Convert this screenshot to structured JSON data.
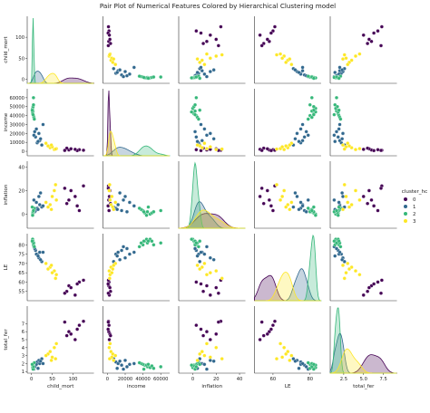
{
  "chart_data": {
    "type": "scatter",
    "title": "Pair Plot of Numerical Features Colored by Hierarchical Clustering model",
    "variables": [
      "child_mort",
      "income",
      "inflation",
      "LE",
      "total_fer"
    ],
    "legend": {
      "title": "cluster_hc",
      "position": "right",
      "entries": [
        "0",
        "1",
        "2",
        "3"
      ],
      "colors": [
        "#440154",
        "#31688e",
        "#35b779",
        "#fde725"
      ]
    },
    "axes": {
      "child_mort": {
        "lim": [
          -10,
          150
        ],
        "ticks": [
          0,
          50,
          100
        ]
      },
      "income": {
        "lim": [
          -5000,
          70000
        ],
        "ticks": [
          0,
          10000,
          20000,
          30000,
          40000,
          50000,
          60000
        ]
      },
      "inflation": {
        "lim": [
          -12,
          45
        ],
        "ticks": [
          0,
          20,
          40
        ]
      },
      "LE": {
        "lim": [
          50,
          86
        ],
        "ticks": [
          55,
          60,
          65,
          70,
          75,
          80
        ]
      },
      "total_fer": {
        "lim": [
          0.8,
          9.2
        ],
        "ticks": [
          1,
          2,
          3,
          4,
          5,
          6,
          7
        ]
      }
    },
    "axis_tick_labels": {
      "child_mort": [
        "0",
        "50",
        "100"
      ],
      "income": [
        "0",
        "20000",
        "40000",
        "60000"
      ],
      "inflation": [
        "0",
        "20",
        "40"
      ],
      "LE": [
        "60",
        "80"
      ],
      "total_fer": [
        "2.5",
        "5.0",
        "7.5"
      ]
    },
    "diagonal_type": "kde",
    "points": [
      {
        "cluster": 0,
        "child_mort": 90,
        "income": 1500,
        "inflation": 12,
        "LE": 58,
        "total_fer": 6.0
      },
      {
        "cluster": 0,
        "child_mort": 115,
        "income": 1800,
        "inflation": 3,
        "LE": 60,
        "total_fer": 6.8
      },
      {
        "cluster": 0,
        "child_mort": 125,
        "income": 1200,
        "inflation": 24,
        "LE": 61,
        "total_fer": 7.3
      },
      {
        "cluster": 0,
        "child_mort": 95,
        "income": 2800,
        "inflation": 20,
        "LE": 57,
        "total_fer": 5.7
      },
      {
        "cluster": 0,
        "child_mort": 110,
        "income": 800,
        "inflation": 7,
        "LE": 59,
        "total_fer": 6.3
      },
      {
        "cluster": 0,
        "child_mort": 105,
        "income": 2200,
        "inflation": 15,
        "LE": 53,
        "total_fer": 5.0
      },
      {
        "cluster": 0,
        "child_mort": 85,
        "income": 3500,
        "inflation": 9,
        "LE": 55,
        "total_fer": 5.5
      },
      {
        "cluster": 0,
        "child_mort": 80,
        "income": 1000,
        "inflation": 22,
        "LE": 54,
        "total_fer": 7.2
      },
      {
        "cluster": 1,
        "child_mort": 14,
        "income": 9500,
        "inflation": 5,
        "LE": 75,
        "total_fer": 2.2
      },
      {
        "cluster": 1,
        "child_mort": 20,
        "income": 12000,
        "inflation": 8,
        "LE": 76,
        "total_fer": 2.0
      },
      {
        "cluster": 1,
        "child_mort": 10,
        "income": 16000,
        "inflation": 3,
        "LE": 77,
        "total_fer": 1.8
      },
      {
        "cluster": 1,
        "child_mort": 18,
        "income": 20000,
        "inflation": 15,
        "LE": 73,
        "total_fer": 2.4
      },
      {
        "cluster": 1,
        "child_mort": 25,
        "income": 7000,
        "inflation": 6,
        "LE": 71,
        "total_fer": 2.6
      },
      {
        "cluster": 1,
        "child_mort": 8,
        "income": 22000,
        "inflation": 2,
        "LE": 78,
        "total_fer": 1.6
      },
      {
        "cluster": 1,
        "child_mort": 12,
        "income": 25000,
        "inflation": 10,
        "LE": 75,
        "total_fer": 1.9
      },
      {
        "cluster": 1,
        "child_mort": 22,
        "income": 14000,
        "inflation": 18,
        "LE": 72,
        "total_fer": 2.3
      },
      {
        "cluster": 1,
        "child_mort": 16,
        "income": 11000,
        "inflation": 4,
        "LE": 74,
        "total_fer": 1.4
      },
      {
        "cluster": 1,
        "child_mort": 6,
        "income": 18000,
        "inflation": 12,
        "LE": 79,
        "total_fer": 1.3
      },
      {
        "cluster": 1,
        "child_mort": 28,
        "income": 30000,
        "inflation": 7,
        "LE": 76,
        "total_fer": 2.0
      },
      {
        "cluster": 2,
        "child_mort": 3,
        "income": 42000,
        "inflation": 1,
        "LE": 82,
        "total_fer": 1.8
      },
      {
        "cluster": 2,
        "child_mort": 4,
        "income": 45000,
        "inflation": 2,
        "LE": 81,
        "total_fer": 1.6
      },
      {
        "cluster": 2,
        "child_mort": 5,
        "income": 40000,
        "inflation": 3,
        "LE": 80,
        "total_fer": 1.9
      },
      {
        "cluster": 2,
        "child_mort": 3,
        "income": 48000,
        "inflation": 0,
        "LE": 83,
        "total_fer": 1.5
      },
      {
        "cluster": 2,
        "child_mort": 6,
        "income": 38000,
        "inflation": 4,
        "LE": 81,
        "total_fer": 2.0
      },
      {
        "cluster": 2,
        "child_mort": 4,
        "income": 50000,
        "inflation": 1,
        "LE": 82,
        "total_fer": 1.7
      },
      {
        "cluster": 2,
        "child_mort": 5,
        "income": 52000,
        "inflation": 2,
        "LE": 80,
        "total_fer": 1.4
      },
      {
        "cluster": 2,
        "child_mort": 3,
        "income": 44000,
        "inflation": -1,
        "LE": 83,
        "total_fer": 1.8
      },
      {
        "cluster": 2,
        "child_mort": 7,
        "income": 36000,
        "inflation": 5,
        "LE": 79,
        "total_fer": 2.1
      },
      {
        "cluster": 2,
        "child_mort": 4,
        "income": 41000,
        "inflation": 2,
        "LE": 82,
        "total_fer": 1.3
      },
      {
        "cluster": 2,
        "child_mort": 5,
        "income": 60000,
        "inflation": 3,
        "LE": 81,
        "total_fer": 1.6
      },
      {
        "cluster": 2,
        "child_mort": 2,
        "income": 46000,
        "inflation": 6,
        "LE": 82,
        "total_fer": 1.9
      },
      {
        "cluster": 3,
        "child_mort": 55,
        "income": 2000,
        "inflation": 20,
        "LE": 66,
        "total_fer": 4.0
      },
      {
        "cluster": 3,
        "child_mort": 45,
        "income": 4000,
        "inflation": 8,
        "LE": 68,
        "total_fer": 3.5
      },
      {
        "cluster": 3,
        "child_mort": 60,
        "income": 3000,
        "inflation": 12,
        "LE": 64,
        "total_fer": 4.5
      },
      {
        "cluster": 3,
        "child_mort": 40,
        "income": 6000,
        "inflation": 6,
        "LE": 67,
        "total_fer": 3.2
      },
      {
        "cluster": 3,
        "child_mort": 50,
        "income": 5000,
        "inflation": 15,
        "LE": 65,
        "total_fer": 2.8
      },
      {
        "cluster": 3,
        "child_mort": 35,
        "income": 9000,
        "inflation": 10,
        "LE": 70,
        "total_fer": 3.0
      },
      {
        "cluster": 3,
        "child_mort": 58,
        "income": 2500,
        "inflation": 25,
        "LE": 62,
        "total_fer": 2.6
      },
      {
        "cluster": 3,
        "child_mort": 48,
        "income": 7000,
        "inflation": 4,
        "LE": 69,
        "total_fer": 2.4
      }
    ]
  }
}
